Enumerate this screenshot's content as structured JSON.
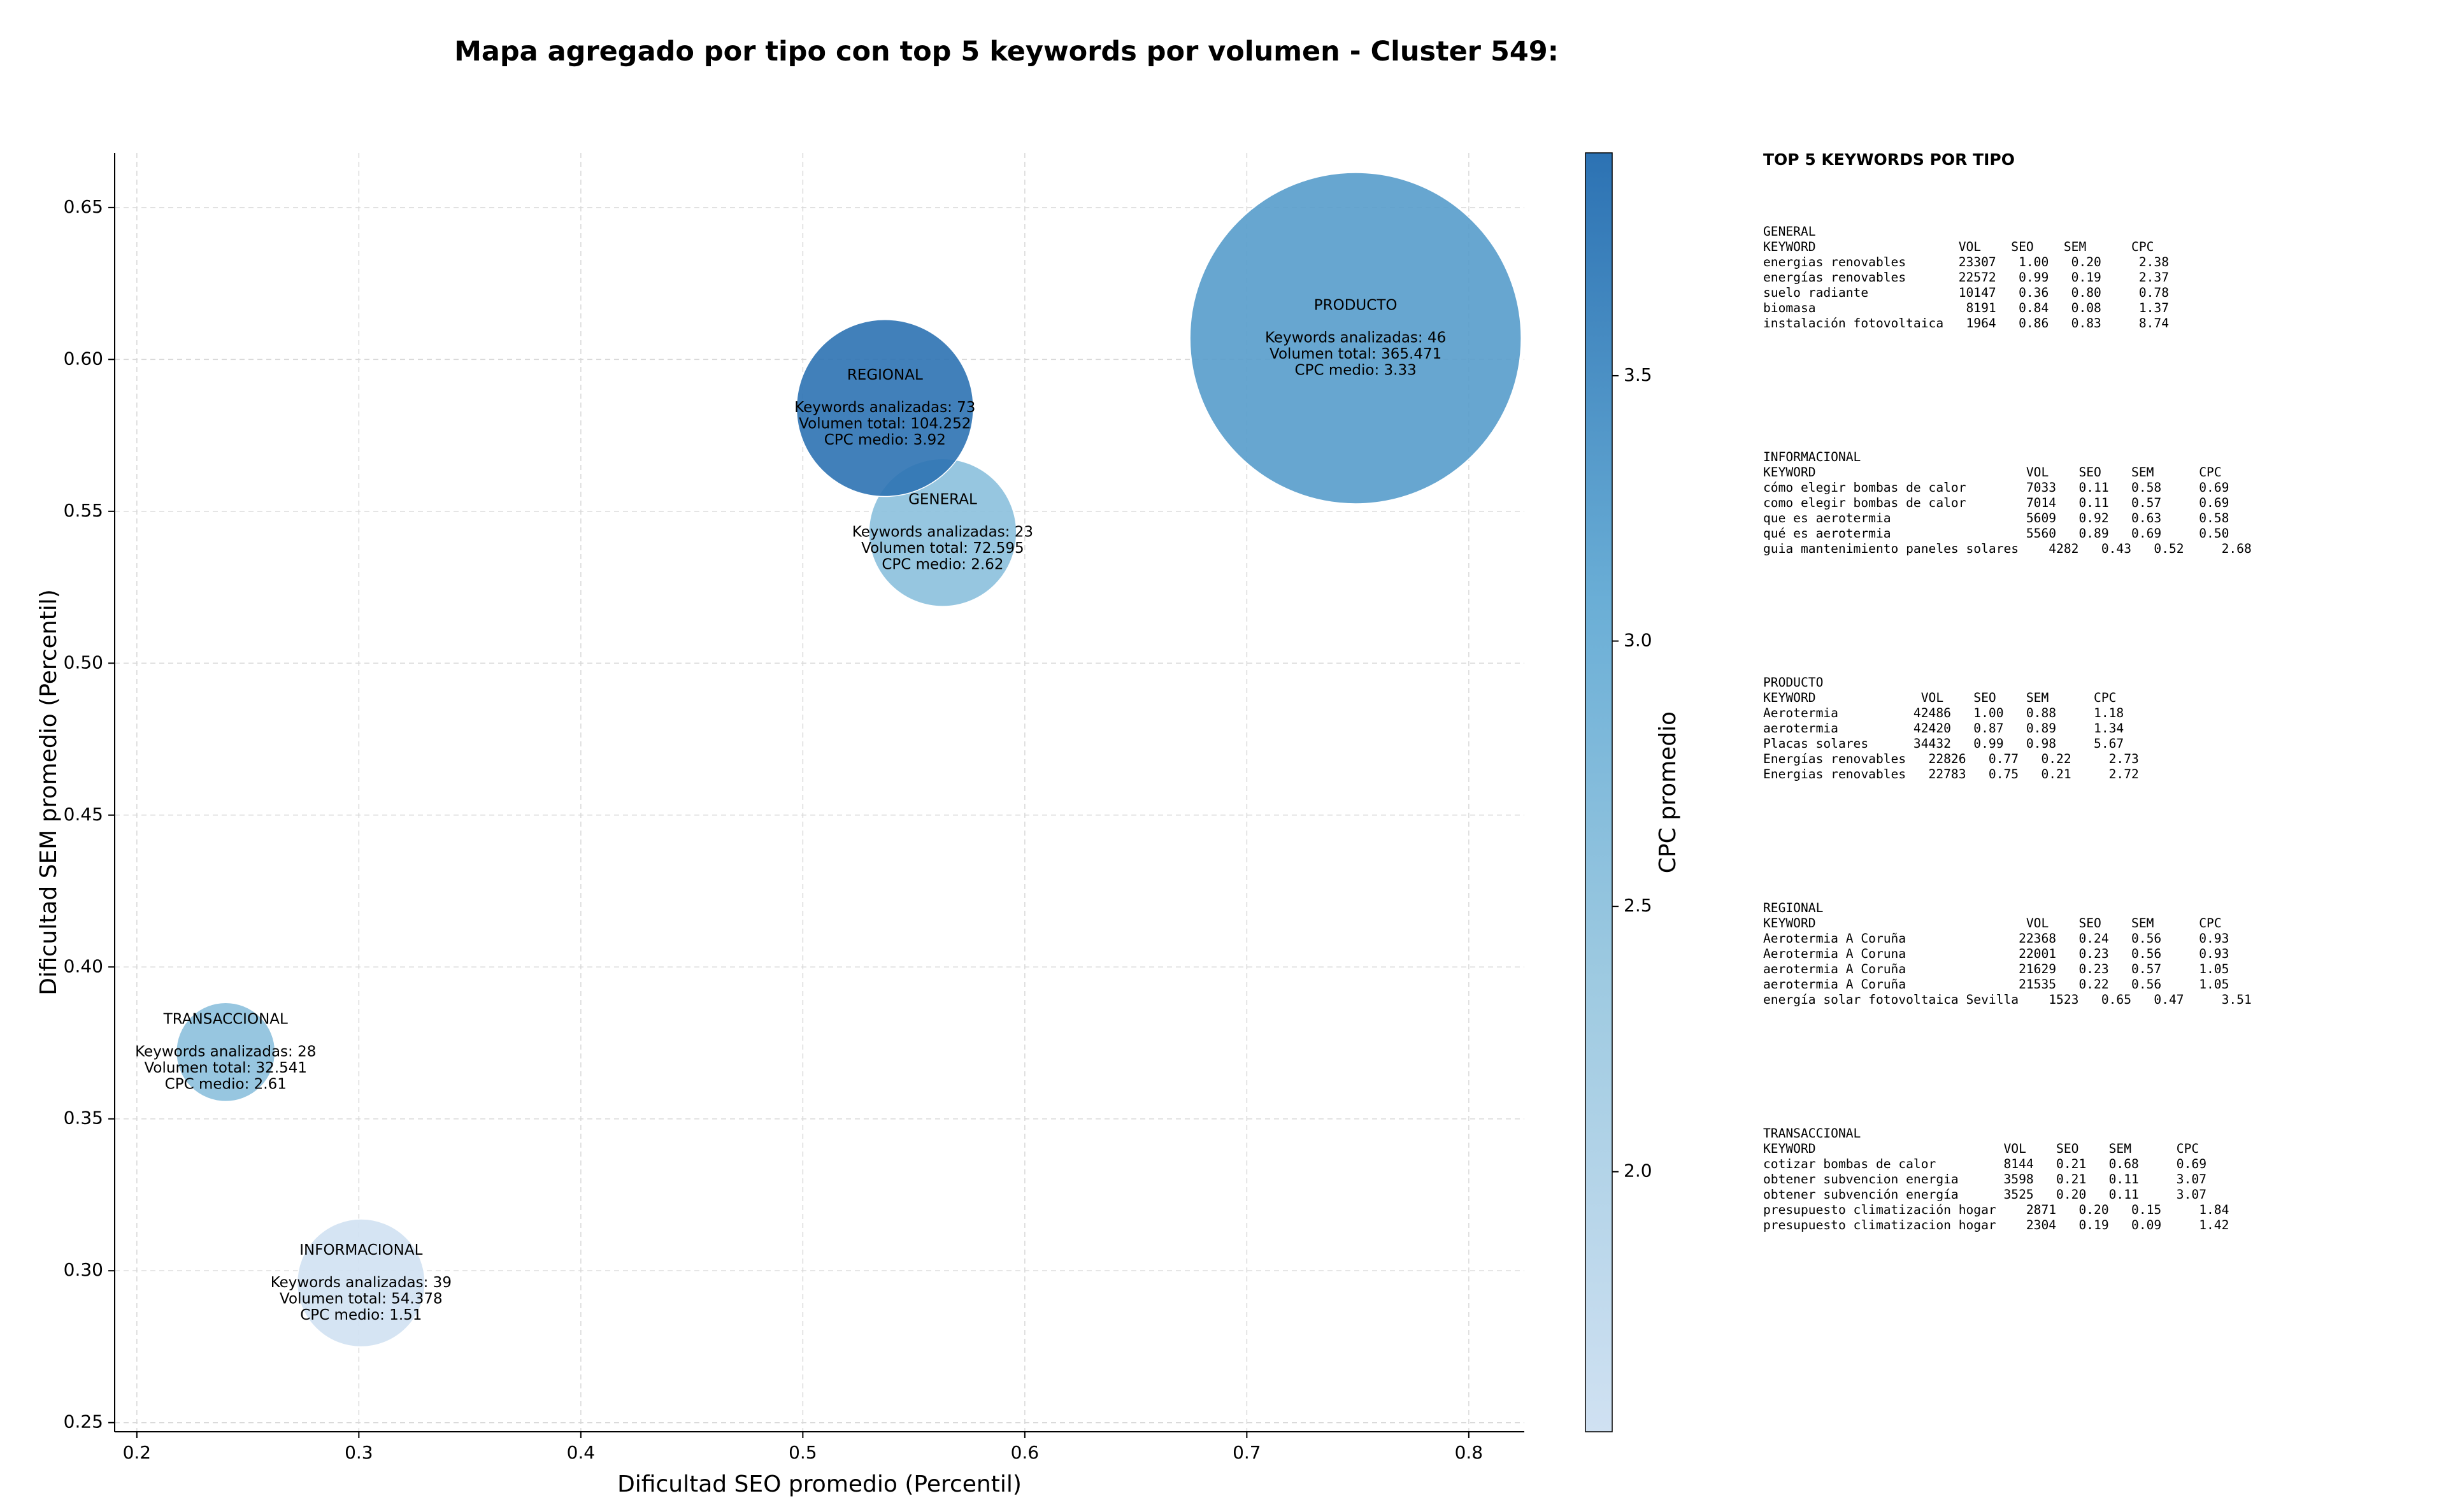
{
  "colors": {
    "cmap_low": "#cfe1f2",
    "cmap_mid": "#6aaed6",
    "cmap_high": "#2171b5",
    "grid": "#d9d9d9",
    "axis": "#000000"
  },
  "chart_data": {
    "type": "scatter",
    "variant": "bubble",
    "title": "Mapa agregado por tipo con top 5 keywords por volumen - Cluster 549:",
    "xlabel": "Dificultad SEO promedio (Percentil)",
    "ylabel": "Dificultad SEM promedio (Percentil)",
    "xlim": [
      0.19,
      0.825
    ],
    "ylim": [
      0.247,
      0.668
    ],
    "xticks": [
      0.2,
      0.3,
      0.4,
      0.5,
      0.6,
      0.7,
      0.8
    ],
    "xtick_labels": [
      "0.2",
      "0.3",
      "0.4",
      "0.5",
      "0.6",
      "0.7",
      "0.8"
    ],
    "yticks": [
      0.25,
      0.3,
      0.35,
      0.4,
      0.45,
      0.5,
      0.55,
      0.6,
      0.65
    ],
    "ytick_labels": [
      "0.25",
      "0.30",
      "0.35",
      "0.40",
      "0.45",
      "0.50",
      "0.55",
      "0.60",
      "0.65"
    ],
    "grid": true,
    "bubble_size_encodes": "Volumen total",
    "color_encodes": "CPC medio",
    "colorbar": {
      "label": "CPC promedio",
      "range": [
        1.51,
        3.92
      ],
      "ticks": [
        2.0,
        2.5,
        3.0,
        3.5
      ],
      "tick_labels": [
        "2.0",
        "2.5",
        "3.0",
        "3.5"
      ]
    },
    "points": [
      {
        "name": "GENERAL",
        "x": 0.563,
        "y": 0.543,
        "keywords": 23,
        "volume": 72595,
        "cpc": 2.62,
        "label_lines": [
          "GENERAL",
          "",
          "Keywords analizadas: 23",
          "Volumen total: 72.595",
          "CPC medio: 2.62"
        ]
      },
      {
        "name": "INFORMACIONAL",
        "x": 0.301,
        "y": 0.296,
        "keywords": 39,
        "volume": 54378,
        "cpc": 1.51,
        "label_lines": [
          "INFORMACIONAL",
          "",
          "Keywords analizadas: 39",
          "Volumen total: 54.378",
          "CPC medio: 1.51"
        ]
      },
      {
        "name": "PRODUCTO",
        "x": 0.749,
        "y": 0.607,
        "keywords": 46,
        "volume": 365471,
        "cpc": 3.33,
        "label_lines": [
          "PRODUCTO",
          "",
          "Keywords analizadas: 46",
          "Volumen total: 365.471",
          "CPC medio: 3.33"
        ]
      },
      {
        "name": "REGIONAL",
        "x": 0.537,
        "y": 0.584,
        "keywords": 73,
        "volume": 104252,
        "cpc": 3.92,
        "label_lines": [
          "REGIONAL",
          "",
          "Keywords analizadas: 73",
          "Volumen total: 104.252",
          "CPC medio: 3.92"
        ]
      },
      {
        "name": "TRANSACCIONAL",
        "x": 0.24,
        "y": 0.372,
        "keywords": 28,
        "volume": 32541,
        "cpc": 2.61,
        "label_lines": [
          "TRANSACCIONAL",
          "",
          "Keywords analizadas: 28",
          "Volumen total: 32.541",
          "CPC medio: 2.61"
        ]
      }
    ]
  },
  "side_panel": {
    "heading": "TOP 5 KEYWORDS POR TIPO",
    "blocks": [
      {
        "type": "GENERAL",
        "text": "GENERAL\nKEYWORD                   VOL    SEO    SEM      CPC\nenergias renovables       23307   1.00   0.20     2.38\nenergías renovables       22572   0.99   0.19     2.37\nsuelo radiante            10147   0.36   0.80     0.78\nbiomasa                    8191   0.84   0.08     1.37\ninstalación fotovoltaica   1964   0.86   0.83     8.74"
      },
      {
        "type": "INFORMACIONAL",
        "text": "INFORMACIONAL\nKEYWORD                            VOL    SEO    SEM      CPC\ncómo elegir bombas de calor        7033   0.11   0.58     0.69\ncomo elegir bombas de calor        7014   0.11   0.57     0.69\nque es aerotermia                  5609   0.92   0.63     0.58\nqué es aerotermia                  5560   0.89   0.69     0.50\nguia mantenimiento paneles solares    4282   0.43   0.52     2.68"
      },
      {
        "type": "PRODUCTO",
        "text": "PRODUCTO\nKEYWORD              VOL    SEO    SEM      CPC\nAerotermia          42486   1.00   0.88     1.18\naerotermia          42420   0.87   0.89     1.34\nPlacas solares      34432   0.99   0.98     5.67\nEnergías renovables   22826   0.77   0.22     2.73\nEnergias renovables   22783   0.75   0.21     2.72"
      },
      {
        "type": "REGIONAL",
        "text": "REGIONAL\nKEYWORD                            VOL    SEO    SEM      CPC\nAerotermia A Coruña               22368   0.24   0.56     0.93\nAerotermia A Coruna               22001   0.23   0.56     0.93\naerotermia A Coruña               21629   0.23   0.57     1.05\naerotermia A Coruña               21535   0.22   0.56     1.05\nenergía solar fotovoltaica Sevilla    1523   0.65   0.47     3.51"
      },
      {
        "type": "TRANSACCIONAL",
        "text": "TRANSACCIONAL\nKEYWORD                         VOL    SEO    SEM      CPC\ncotizar bombas de calor         8144   0.21   0.68     0.69\nobtener subvencion energia      3598   0.21   0.11     3.07\nobtener subvención energía      3525   0.20   0.11     3.07\npresupuesto climatización hogar    2871   0.20   0.15     1.84\npresupuesto climatizacion hogar    2304   0.19   0.09     1.42"
      }
    ]
  }
}
